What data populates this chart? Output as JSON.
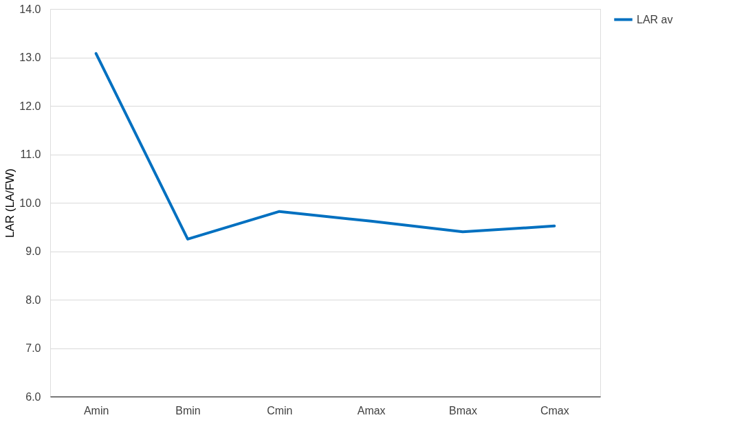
{
  "chart_data": {
    "type": "line",
    "ylabel": "LAR (LA/FW)",
    "categories": [
      "Amin",
      "Bmin",
      "Cmin",
      "Amax",
      "Bmax",
      "Cmax"
    ],
    "series": [
      {
        "name": "LAR av",
        "color": "#0070c0",
        "values": [
          13.08,
          9.25,
          9.82,
          9.62,
          9.4,
          9.52
        ]
      }
    ],
    "ylim": [
      6.0,
      14.0
    ],
    "yticks": [
      {
        "value": 6,
        "label": "6.0"
      },
      {
        "value": 7,
        "label": "7.0"
      },
      {
        "value": 8,
        "label": "8.0"
      },
      {
        "value": 9,
        "label": "9.0"
      },
      {
        "value": 10,
        "label": "10.0"
      },
      {
        "value": 11,
        "label": "11.0"
      },
      {
        "value": 12,
        "label": "12.0"
      },
      {
        "value": 13,
        "label": "13.0"
      },
      {
        "value": 14,
        "label": "14.0"
      }
    ],
    "grid": "y",
    "legend": "right",
    "marker": "none",
    "line_style": "solid"
  }
}
